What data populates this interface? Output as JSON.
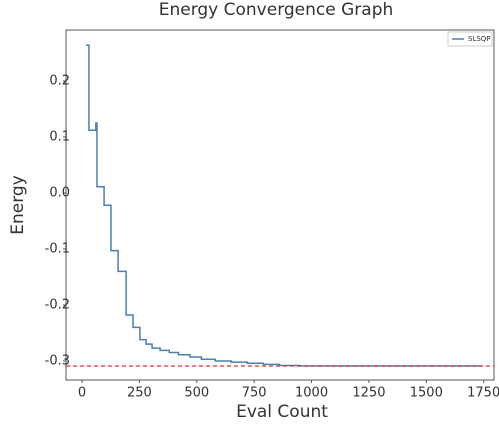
{
  "chart_data": {
    "type": "line",
    "title": "Energy Convergence Graph",
    "x_label": "Eval Count",
    "y_label": "Energy",
    "x": [
      17,
      30,
      30,
      60,
      60,
      65,
      65,
      96,
      96,
      126,
      126,
      157,
      157,
      192,
      192,
      222,
      222,
      252,
      252,
      279,
      279,
      305,
      305,
      340,
      340,
      380,
      380,
      420,
      420,
      470,
      470,
      520,
      520,
      580,
      580,
      650,
      650,
      720,
      720,
      790,
      790,
      860,
      860,
      950,
      950,
      1740
    ],
    "series": [
      {
        "name": "SLSQP",
        "color": "#4a7fb0",
        "values": [
          0.264,
          0.264,
          0.112,
          0.112,
          0.125,
          0.125,
          0.011,
          0.011,
          -0.022,
          -0.022,
          -0.103,
          -0.103,
          -0.14,
          -0.14,
          -0.218,
          -0.218,
          -0.24,
          -0.24,
          -0.262,
          -0.262,
          -0.27,
          -0.27,
          -0.277,
          -0.277,
          -0.281,
          -0.281,
          -0.285,
          -0.285,
          -0.289,
          -0.289,
          -0.293,
          -0.293,
          -0.297,
          -0.297,
          -0.3,
          -0.3,
          -0.302,
          -0.302,
          -0.304,
          -0.304,
          -0.306,
          -0.306,
          -0.308,
          -0.308,
          -0.309,
          -0.309
        ]
      }
    ],
    "hline": {
      "value": -0.309,
      "color": "#e03030"
    },
    "xlim": [
      -70,
      1795
    ],
    "ylim": [
      -0.334,
      0.291
    ],
    "xticks": [
      0,
      250,
      500,
      750,
      1000,
      1250,
      1500,
      1750
    ],
    "yticks": [
      -0.3,
      -0.2,
      -0.1,
      {
        "value": 0,
        "label": "0.0"
      },
      0.1,
      0.2
    ],
    "grid": false,
    "legend": "upper right"
  }
}
